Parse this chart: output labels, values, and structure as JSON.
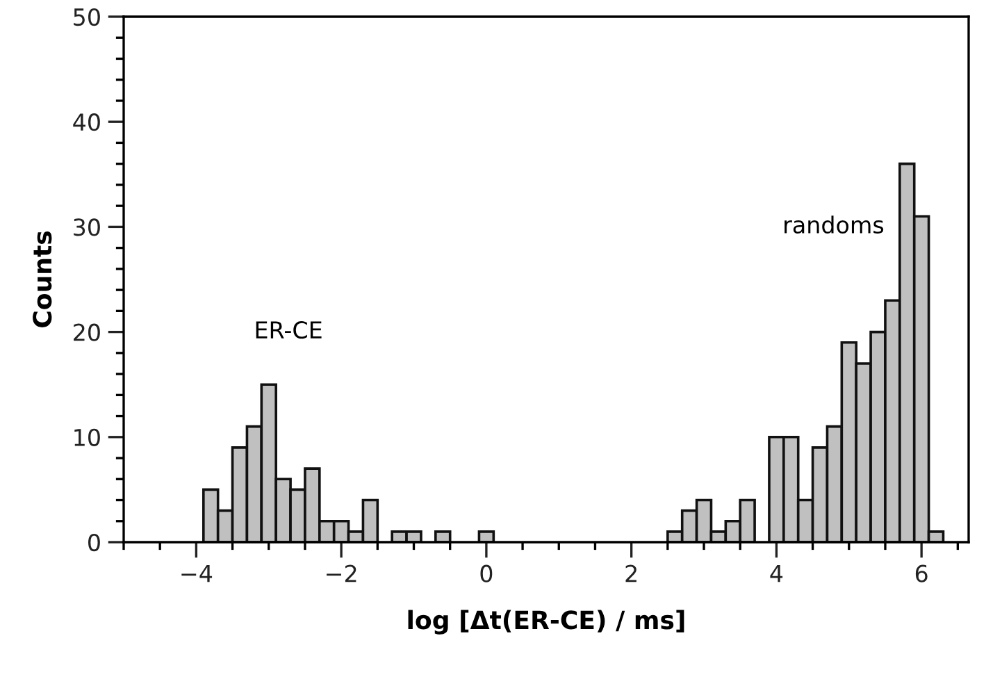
{
  "chart_data": {
    "type": "histogram",
    "xlabel": "log [Δt(ER-CE) / ms]",
    "ylabel": "Counts",
    "bins": [
      -4.1,
      -3.9,
      -3.7,
      -3.5,
      -3.3,
      -3.1,
      -2.9,
      -2.7,
      -2.5,
      -2.3,
      -2.1,
      -1.9,
      -1.7,
      -1.5,
      -1.3,
      -1.1,
      -0.9,
      -0.7,
      -0.5,
      -0.3,
      -0.1,
      0.1,
      0.3,
      0.5,
      0.7,
      0.9,
      1.1,
      1.3,
      1.5,
      1.7,
      1.9,
      2.1,
      2.3,
      2.5,
      2.7,
      2.9,
      3.1,
      3.3,
      3.5,
      3.7,
      3.9,
      4.1,
      4.3,
      4.5,
      4.7,
      4.9,
      5.1,
      5.3,
      5.5,
      5.7,
      5.9,
      6.1,
      6.3
    ],
    "values": [
      0,
      5,
      3,
      9,
      11,
      15,
      6,
      5,
      7,
      2,
      2,
      1,
      4,
      0,
      1,
      1,
      0,
      1,
      0,
      0,
      1,
      0,
      0,
      0,
      0,
      0,
      0,
      0,
      0,
      0,
      0,
      0,
      0,
      1,
      3,
      4,
      1,
      2,
      4,
      0,
      10,
      10,
      4,
      9,
      11,
      19,
      17,
      20,
      23,
      36,
      31,
      1
    ],
    "color": "#c0c0c0",
    "xlim": [
      -5,
      6.65
    ],
    "ylim": [
      0,
      50
    ],
    "xticks": [
      {
        "value": -4,
        "label": "−4"
      },
      {
        "value": -2,
        "label": "−2"
      },
      0,
      2,
      4,
      6
    ],
    "yticks": [
      0,
      10,
      20,
      30,
      40,
      50
    ],
    "grid": false,
    "legend": false,
    "annotations": [
      "ER-CE",
      "randoms"
    ]
  }
}
